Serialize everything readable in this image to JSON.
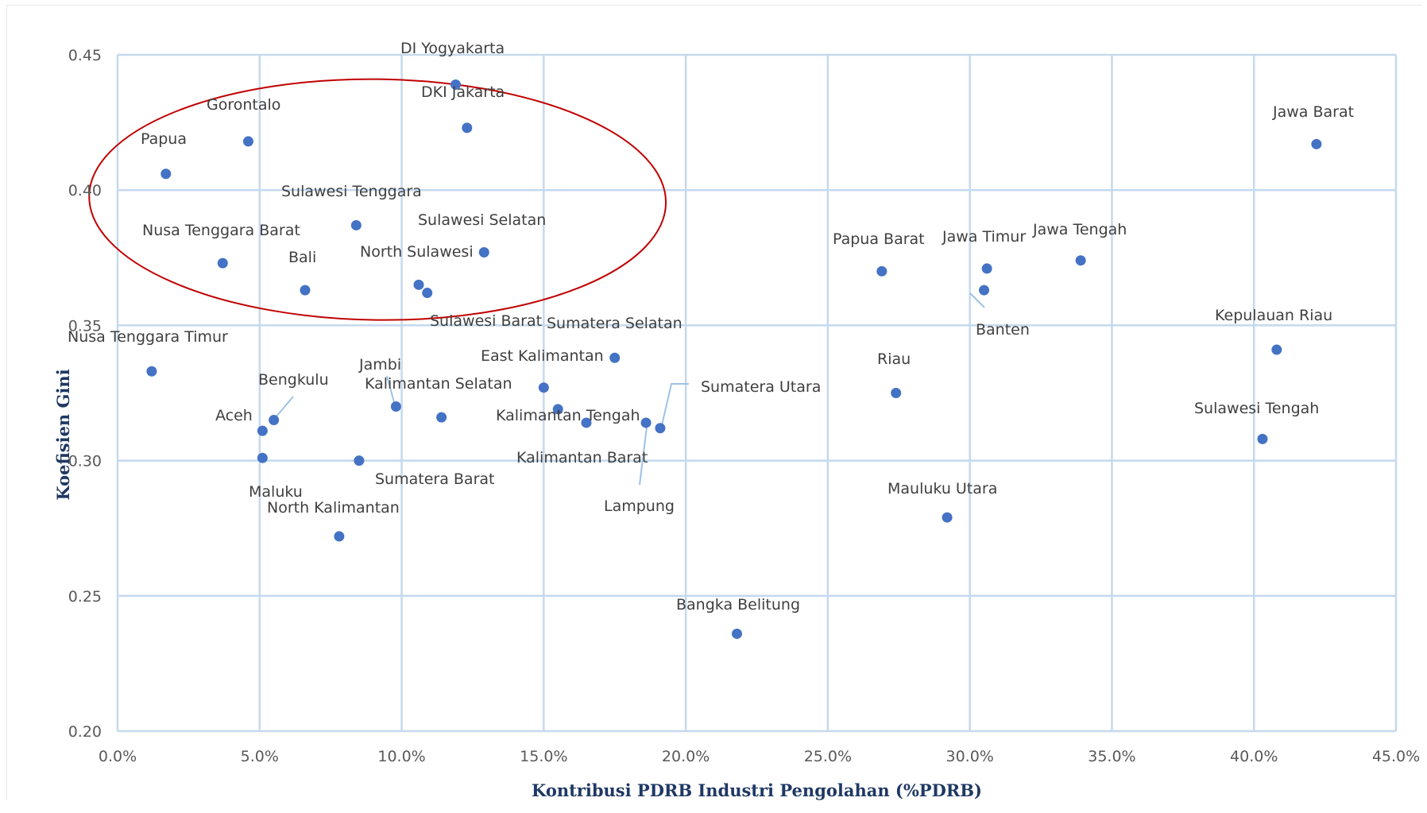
{
  "chart_data": {
    "type": "scatter",
    "title": "",
    "xlabel": "Kontribusi PDRB Industri Pengolahan (%PDRB)",
    "ylabel": "Koefisien Gini",
    "xlim": [
      0,
      45
    ],
    "ylim": [
      0.2,
      0.45
    ],
    "x_ticks": [
      0,
      5,
      10,
      15,
      20,
      25,
      30,
      35,
      40,
      45
    ],
    "x_tick_labels": [
      "0.0%",
      "5.0%",
      "10.0%",
      "15.0%",
      "20.0%",
      "25.0%",
      "30.0%",
      "35.0%",
      "40.0%",
      "45.0%"
    ],
    "y_ticks": [
      0.2,
      0.25,
      0.3,
      0.35,
      0.4,
      0.45
    ],
    "y_tick_labels": [
      "0.20",
      "0.25",
      "0.30",
      "0.35",
      "0.40",
      "0.45"
    ],
    "grid": true,
    "legend": "none",
    "marker_color": "#4472c4",
    "gridline_color": "#c5d9ee",
    "highlight_ellipse_color": "#c00000",
    "highlight_ellipse_region": {
      "x": [
        -1.0,
        19.3
      ],
      "y": [
        0.352,
        0.441
      ]
    },
    "points": [
      {
        "name": "DI Yogyakarta",
        "x": 11.9,
        "y": 0.439
      },
      {
        "name": "DKI Jakarta",
        "x": 12.3,
        "y": 0.423
      },
      {
        "name": "Gorontalo",
        "x": 4.6,
        "y": 0.418
      },
      {
        "name": "Papua",
        "x": 1.7,
        "y": 0.406
      },
      {
        "name": "Sulawesi Tenggara",
        "x": 8.4,
        "y": 0.387
      },
      {
        "name": "Sulawesi Selatan",
        "x": 12.9,
        "y": 0.377
      },
      {
        "name": "Nusa Tenggara Barat",
        "x": 3.7,
        "y": 0.373
      },
      {
        "name": "Bali",
        "x": 6.6,
        "y": 0.363
      },
      {
        "name": "North Sulawesi",
        "x": 10.6,
        "y": 0.365
      },
      {
        "name": "Sulawesi Barat",
        "x": 10.9,
        "y": 0.362
      },
      {
        "name": "Jawa Barat",
        "x": 42.2,
        "y": 0.417
      },
      {
        "name": "Papua Barat",
        "x": 26.9,
        "y": 0.37
      },
      {
        "name": "Jawa Timur",
        "x": 30.6,
        "y": 0.371
      },
      {
        "name": "Jawa Tengah",
        "x": 33.9,
        "y": 0.374
      },
      {
        "name": "Banten",
        "x": 30.5,
        "y": 0.363
      },
      {
        "name": "Kepulauan Riau",
        "x": 40.8,
        "y": 0.341
      },
      {
        "name": "Sulawesi Tengah",
        "x": 40.3,
        "y": 0.308
      },
      {
        "name": "Riau",
        "x": 27.4,
        "y": 0.325
      },
      {
        "name": "Nusa Tenggara Timur",
        "x": 1.2,
        "y": 0.333
      },
      {
        "name": "Sumatera Selatan",
        "x": 17.5,
        "y": 0.338
      },
      {
        "name": "East Kalimantan",
        "x": 15.0,
        "y": 0.327
      },
      {
        "name": "Kalimantan Tengah",
        "x": 16.5,
        "y": 0.314
      },
      {
        "name": "Kalimantan Selatan",
        "x": 11.4,
        "y": 0.316
      },
      {
        "name": "Jambi",
        "x": 9.8,
        "y": 0.32
      },
      {
        "name": "Bengkulu",
        "x": 5.5,
        "y": 0.315
      },
      {
        "name": "Aceh",
        "x": 5.1,
        "y": 0.311
      },
      {
        "name": "Maluku",
        "x": 5.1,
        "y": 0.301
      },
      {
        "name": "Sumatera Barat",
        "x": 8.5,
        "y": 0.3
      },
      {
        "name": "Kalimantan Barat",
        "x": 15.5,
        "y": 0.319
      },
      {
        "name": "Lampung",
        "x": 18.6,
        "y": 0.314
      },
      {
        "name": "Sumatera Utara",
        "x": 19.1,
        "y": 0.312
      },
      {
        "name": "North Kalimantan",
        "x": 7.8,
        "y": 0.272
      },
      {
        "name": "Mauluku Utara",
        "x": 29.2,
        "y": 0.279
      },
      {
        "name": "Bangka Belitung",
        "x": 21.8,
        "y": 0.236
      }
    ]
  }
}
